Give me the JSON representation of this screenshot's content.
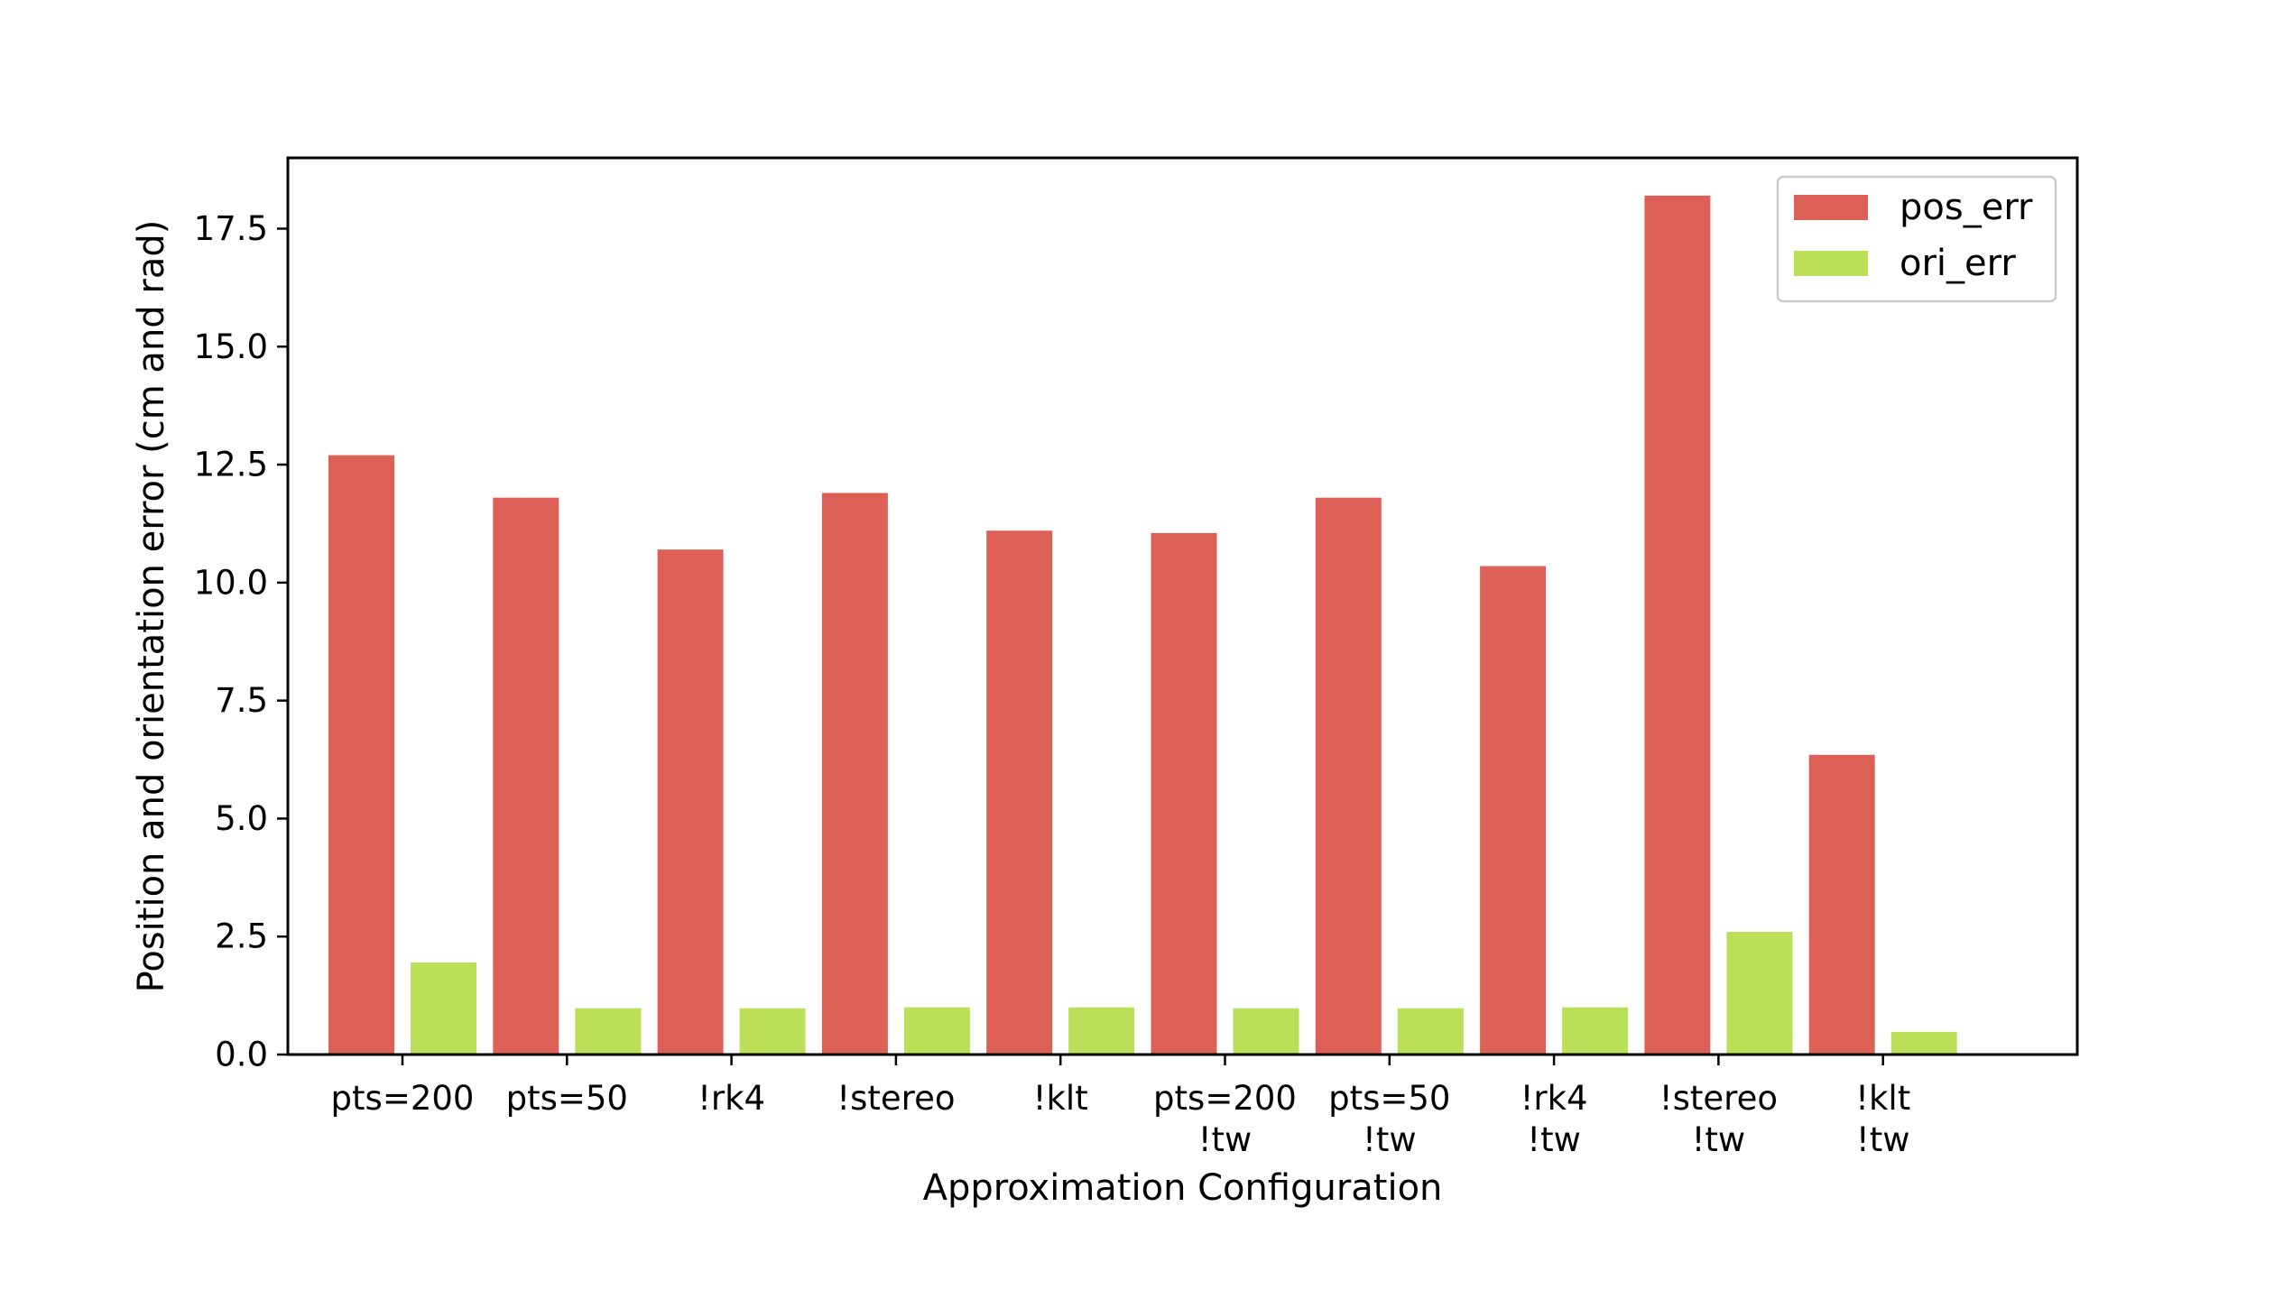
{
  "chart_data": {
    "type": "bar",
    "title": "",
    "xlabel": "Approximation Configuration",
    "ylabel": "Position and orientation error (cm and rad)",
    "ylim": [
      0,
      19.0
    ],
    "yticks": [
      "0.0",
      "2.5",
      "5.0",
      "7.5",
      "10.0",
      "12.5",
      "15.0",
      "17.5"
    ],
    "grid": false,
    "legend_position": "top-right",
    "categories": [
      [
        "pts=200"
      ],
      [
        "pts=50"
      ],
      [
        "!rk4"
      ],
      [
        "!stereo"
      ],
      [
        "!klt"
      ],
      [
        "pts=200",
        "!tw"
      ],
      [
        "pts=50",
        "!tw"
      ],
      [
        "!rk4",
        "!tw"
      ],
      [
        "!stereo",
        "!tw"
      ],
      [
        "!klt",
        "!tw"
      ]
    ],
    "series": [
      {
        "name": "pos_err",
        "color": "#dd6057",
        "values": [
          12.7,
          11.8,
          10.7,
          11.9,
          11.1,
          11.05,
          11.8,
          10.35,
          18.2,
          6.35
        ]
      },
      {
        "name": "ori_err",
        "color": "#badf59",
        "values": [
          1.95,
          0.98,
          0.98,
          1.0,
          1.0,
          0.98,
          0.98,
          1.0,
          2.6,
          0.48
        ]
      }
    ]
  }
}
